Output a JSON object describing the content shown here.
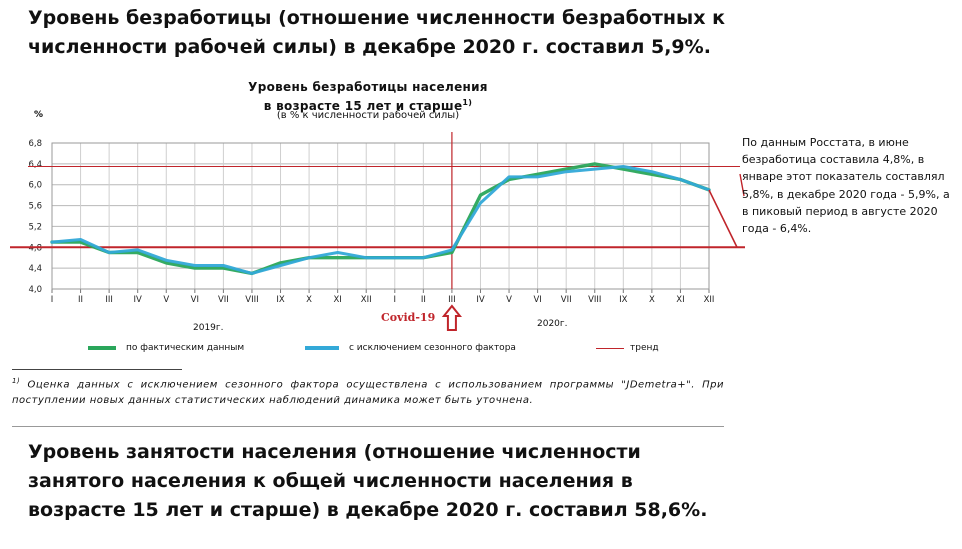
{
  "headline_top": "Уровень безработицы (отношение численности безработных к численности рабочей силы) в декабре 2020 г. составил 5,9%.",
  "headline_bottom": "Уровень занятости населения (отношение численности занятого населения к общей численности населения в возрасте 15 лет и старше) в декабре 2020 г. составил 58,6%.",
  "annotation": "По данным Росстата, в июне безработица составила 4,8%, в январе этот показатель составлял 5,8%, в декабре 2020 года - 5,9%, а в пиковый период в августе 2020 года - 6,4%.",
  "covid_label": "Covid-19",
  "footnote": {
    "marker": "1)",
    "text": "Оценка данных с исключением сезонного фактора осуществлена с использованием программы \"JDemetra+\". При поступлении новых данных статистических наблюдений динамика может быть уточнена."
  },
  "chart_data": {
    "type": "line",
    "title": "Уровень безработицы населения",
    "title_line2": "в возрасте 15 лет и старше",
    "title_footnote_marker": "1)",
    "subtitle": "(в % к численности рабочей силы)",
    "ylabel": "%",
    "ylim": [
      4.0,
      6.8
    ],
    "yticks": [
      "4,0",
      "4,4",
      "4,8",
      "5,2",
      "5,6",
      "6,0",
      "6,4",
      "6,8"
    ],
    "ytick_values": [
      4.0,
      4.4,
      4.8,
      5.2,
      5.6,
      6.0,
      6.4,
      6.8
    ],
    "categories": [
      "I",
      "II",
      "III",
      "IV",
      "V",
      "VI",
      "VII",
      "VIII",
      "IX",
      "X",
      "XI",
      "XII",
      "I",
      "II",
      "III",
      "IV",
      "V",
      "VI",
      "VII",
      "VIII",
      "IX",
      "X",
      "XI",
      "XII"
    ],
    "year_labels": [
      "2019г.",
      "2020г."
    ],
    "grid": true,
    "series": [
      {
        "name": "по фактическим данным",
        "color": "#2aa65b",
        "values": [
          4.9,
          4.9,
          4.7,
          4.7,
          4.5,
          4.4,
          4.4,
          4.3,
          4.5,
          4.6,
          4.6,
          4.6,
          4.6,
          4.6,
          4.7,
          5.8,
          6.1,
          6.2,
          6.3,
          6.4,
          6.3,
          6.2,
          6.1,
          5.9
        ]
      },
      {
        "name": "с исключением сезонного фактора",
        "color": "#33a9d8",
        "values": [
          4.9,
          4.95,
          4.7,
          4.75,
          4.55,
          4.45,
          4.45,
          4.3,
          4.45,
          4.6,
          4.7,
          4.6,
          4.6,
          4.6,
          4.75,
          5.65,
          6.15,
          6.15,
          6.25,
          6.3,
          6.35,
          6.25,
          6.1,
          5.9
        ]
      }
    ],
    "trend": {
      "name": "тренд",
      "color": "#c0252b",
      "levels": [
        6.35,
        4.8
      ]
    },
    "covid_marker_category_index": 14,
    "annotation_end_value": 4.8
  }
}
